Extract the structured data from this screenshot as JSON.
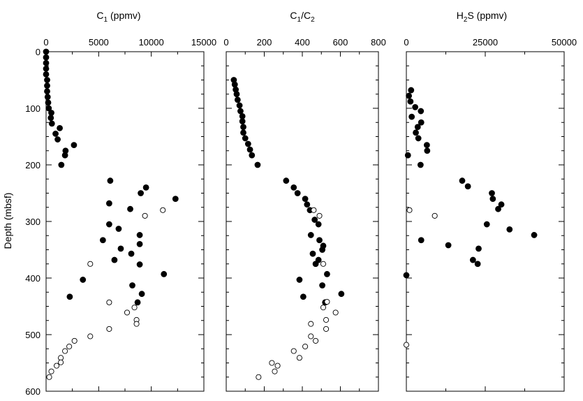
{
  "figure": {
    "y_axis_label": "Depth (mbsf)"
  },
  "chart_data": [
    {
      "type": "scatter",
      "title": "C1 (ppmv)",
      "title_parts": {
        "main": "C",
        "sub": "1",
        "rest": " (ppmv)"
      },
      "xlim": [
        0,
        15000
      ],
      "ylim": [
        0,
        600
      ],
      "y_inverted": true,
      "xticks": [
        0,
        5000,
        10000,
        15000
      ],
      "yticks": [
        0,
        100,
        200,
        300,
        400,
        500,
        600
      ],
      "ylabel": "Depth (mbsf)",
      "grid": false,
      "series": [
        {
          "name": "filled",
          "marker": "filled-circle",
          "points": [
            [
              0,
              0
            ],
            [
              0,
              10
            ],
            [
              0,
              20
            ],
            [
              0,
              30
            ],
            [
              0,
              40
            ],
            [
              100,
              50
            ],
            [
              100,
              60
            ],
            [
              100,
              70
            ],
            [
              150,
              80
            ],
            [
              200,
              90
            ],
            [
              250,
              100
            ],
            [
              500,
              108
            ],
            [
              450,
              117
            ],
            [
              550,
              127
            ],
            [
              1300,
              135
            ],
            [
              900,
              145
            ],
            [
              1100,
              155
            ],
            [
              2650,
              165
            ],
            [
              1850,
              175
            ],
            [
              1800,
              183
            ],
            [
              1450,
              200
            ],
            [
              6100,
              228
            ],
            [
              9500,
              240
            ],
            [
              9000,
              250
            ],
            [
              12300,
              260
            ],
            [
              6000,
              268
            ],
            [
              8000,
              278
            ],
            [
              6000,
              305
            ],
            [
              6900,
              313
            ],
            [
              8900,
              324
            ],
            [
              5400,
              333
            ],
            [
              8900,
              340
            ],
            [
              7100,
              348
            ],
            [
              8100,
              357
            ],
            [
              6500,
              368
            ],
            [
              8900,
              376
            ],
            [
              11200,
              393
            ],
            [
              3500,
              403
            ],
            [
              8200,
              413
            ],
            [
              9100,
              428
            ],
            [
              2250,
              433
            ],
            [
              8700,
              443
            ]
          ]
        },
        {
          "name": "open",
          "marker": "open-circle",
          "points": [
            [
              11100,
              280
            ],
            [
              9400,
              290
            ],
            [
              4200,
              375
            ],
            [
              6000,
              443
            ],
            [
              8400,
              452
            ],
            [
              7700,
              461
            ],
            [
              8600,
              474
            ],
            [
              8600,
              481
            ],
            [
              6000,
              490
            ],
            [
              4200,
              503
            ],
            [
              2700,
              511
            ],
            [
              2200,
              521
            ],
            [
              1800,
              529
            ],
            [
              1400,
              541
            ],
            [
              1400,
              549
            ],
            [
              1000,
              555
            ],
            [
              500,
              565
            ],
            [
              300,
              575
            ]
          ]
        }
      ]
    },
    {
      "type": "scatter",
      "title": "C1/C2",
      "title_parts": {
        "main": "C",
        "sub": "1",
        "mid": "/C",
        "sub2": "2"
      },
      "xlim": [
        0,
        800
      ],
      "ylim": [
        0,
        600
      ],
      "y_inverted": true,
      "xticks": [
        0,
        200,
        400,
        600,
        800
      ],
      "yticks": [
        0,
        100,
        200,
        300,
        400,
        500,
        600
      ],
      "grid": false,
      "series": [
        {
          "name": "filled",
          "marker": "filled-circle",
          "points": [
            [
              40,
              50
            ],
            [
              45,
              58
            ],
            [
              50,
              67
            ],
            [
              55,
              75
            ],
            [
              60,
              85
            ],
            [
              70,
              95
            ],
            [
              75,
              105
            ],
            [
              85,
              114
            ],
            [
              85,
              123
            ],
            [
              90,
              133
            ],
            [
              90,
              143
            ],
            [
              100,
              153
            ],
            [
              115,
              163
            ],
            [
              125,
              173
            ],
            [
              135,
              183
            ],
            [
              165,
              200
            ],
            [
              315,
              228
            ],
            [
              355,
              240
            ],
            [
              375,
              250
            ],
            [
              415,
              260
            ],
            [
              425,
              270
            ],
            [
              440,
              280
            ],
            [
              465,
              297
            ],
            [
              485,
              305
            ],
            [
              445,
              324
            ],
            [
              490,
              333
            ],
            [
              510,
              343
            ],
            [
              505,
              350
            ],
            [
              455,
              357
            ],
            [
              485,
              368
            ],
            [
              470,
              375
            ],
            [
              530,
              393
            ],
            [
              385,
              403
            ],
            [
              505,
              413
            ],
            [
              605,
              428
            ],
            [
              405,
              433
            ],
            [
              520,
              443
            ]
          ]
        },
        {
          "name": "open",
          "marker": "open-circle",
          "points": [
            [
              460,
              280
            ],
            [
              490,
              290
            ],
            [
              510,
              375
            ],
            [
              530,
              442
            ],
            [
              510,
              452
            ],
            [
              575,
              461
            ],
            [
              525,
              474
            ],
            [
              445,
              481
            ],
            [
              525,
              490
            ],
            [
              445,
              503
            ],
            [
              470,
              511
            ],
            [
              415,
              521
            ],
            [
              355,
              529
            ],
            [
              385,
              541
            ],
            [
              240,
              550
            ],
            [
              270,
              555
            ],
            [
              255,
              565
            ],
            [
              170,
              575
            ]
          ]
        }
      ]
    },
    {
      "type": "scatter",
      "title": "H2S (ppmv)",
      "title_parts": {
        "main": "H",
        "sub": "2",
        "rest": "S (ppmv)"
      },
      "xlim": [
        0,
        50000
      ],
      "ylim": [
        0,
        600
      ],
      "y_inverted": true,
      "xticks": [
        0,
        25000,
        50000
      ],
      "yticks": [
        0,
        100,
        200,
        300,
        400,
        500,
        600
      ],
      "grid": false,
      "series": [
        {
          "name": "filled",
          "marker": "filled-circle",
          "points": [
            [
              1500,
              68
            ],
            [
              800,
              78
            ],
            [
              1300,
              88
            ],
            [
              2800,
              98
            ],
            [
              4600,
              105
            ],
            [
              1700,
              115
            ],
            [
              4700,
              125
            ],
            [
              3600,
              133
            ],
            [
              3000,
              143
            ],
            [
              3800,
              153
            ],
            [
              6500,
              165
            ],
            [
              6600,
              175
            ],
            [
              500,
              183
            ],
            [
              4500,
              200
            ],
            [
              17700,
              228
            ],
            [
              19500,
              238
            ],
            [
              27100,
              250
            ],
            [
              27400,
              260
            ],
            [
              30100,
              270
            ],
            [
              29100,
              278
            ],
            [
              25500,
              305
            ],
            [
              32700,
              314
            ],
            [
              40500,
              324
            ],
            [
              4700,
              333
            ],
            [
              13300,
              342
            ],
            [
              22900,
              348
            ],
            [
              21100,
              368
            ],
            [
              22600,
              375
            ],
            [
              0,
              395
            ]
          ]
        },
        {
          "name": "open",
          "marker": "open-circle",
          "points": [
            [
              1000,
              280
            ],
            [
              9000,
              290
            ],
            [
              0,
              518
            ]
          ]
        }
      ]
    }
  ]
}
